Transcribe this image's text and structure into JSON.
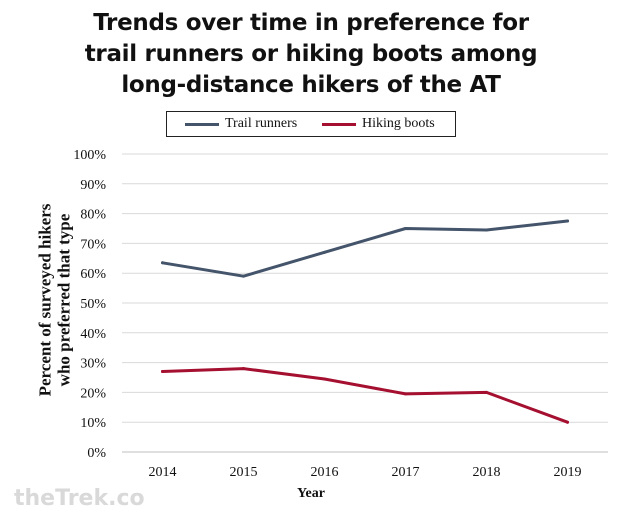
{
  "chart_data": {
    "type": "line",
    "title_lines": [
      "Trends over time in preference for",
      "trail runners or hiking boots among",
      "long-distance hikers of the AT"
    ],
    "xlabel": "Year",
    "ylabel_lines": [
      "Percent of surveyed hikers",
      "who preferred that type"
    ],
    "x": [
      "2014",
      "2015",
      "2016",
      "2017",
      "2018",
      "2019"
    ],
    "y_ticks": [
      "0%",
      "10%",
      "20%",
      "30%",
      "40%",
      "50%",
      "60%",
      "70%",
      "80%",
      "90%",
      "100%"
    ],
    "ylim": [
      0,
      100
    ],
    "grid": true,
    "legend_position": "top",
    "series": [
      {
        "name": "Trail runners",
        "color": "#44546a",
        "values": [
          63.5,
          59,
          67,
          75,
          74.5,
          77.5
        ]
      },
      {
        "name": "Hiking boots",
        "color": "#a50f30",
        "values": [
          27,
          28,
          24.5,
          19.5,
          20,
          10
        ]
      }
    ]
  },
  "watermark": "theTrek.co"
}
